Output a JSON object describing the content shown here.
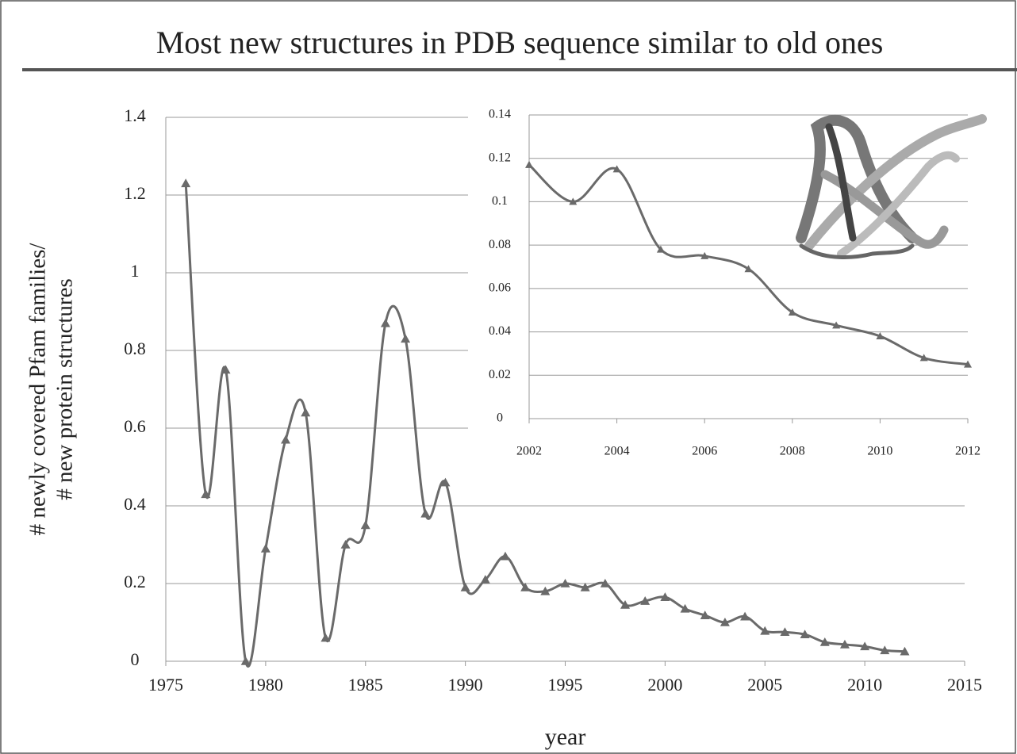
{
  "title": "Most new structures in PDB sequence similar to old ones",
  "chart_data": [
    {
      "type": "line",
      "xlabel": "year",
      "ylabel": [
        "# newly covered Pfam families/",
        "# new protein structures"
      ],
      "x": [
        1976,
        1977,
        1978,
        1979,
        1980,
        1981,
        1982,
        1983,
        1984,
        1985,
        1986,
        1987,
        1988,
        1989,
        1990,
        1991,
        1992,
        1993,
        1994,
        1995,
        1996,
        1997,
        1998,
        1999,
        2000,
        2001,
        2002,
        2003,
        2004,
        2005,
        2006,
        2007,
        2008,
        2009,
        2010,
        2011,
        2012
      ],
      "values": [
        1.23,
        0.43,
        0.75,
        0,
        0.29,
        0.57,
        0.64,
        0.06,
        0.3,
        0.35,
        0.87,
        0.83,
        0.38,
        0.46,
        0.19,
        0.21,
        0.27,
        0.19,
        0.18,
        0.2,
        0.19,
        0.2,
        0.145,
        0.155,
        0.165,
        0.135,
        0.118,
        0.1,
        0.115,
        0.078,
        0.075,
        0.069,
        0.049,
        0.043,
        0.038,
        0.028,
        0.025
      ],
      "color": "#6a6a6a",
      "xlim": [
        1975,
        2015
      ],
      "xticks": [
        1975,
        1980,
        1985,
        1990,
        1995,
        2000,
        2005,
        2010,
        2015
      ],
      "ylim": [
        0,
        1.4
      ],
      "yticks": [
        0,
        0.2,
        0.4,
        0.6,
        0.8,
        1,
        1.2,
        1.4
      ],
      "grid": true
    },
    {
      "type": "line",
      "x": [
        2002,
        2003,
        2004,
        2005,
        2006,
        2007,
        2008,
        2009,
        2010,
        2011,
        2012
      ],
      "values": [
        0.117,
        0.1,
        0.115,
        0.078,
        0.075,
        0.069,
        0.049,
        0.043,
        0.038,
        0.028,
        0.025
      ],
      "color": "#6a6a6a",
      "xlim": [
        2002,
        2012
      ],
      "xticks": [
        2002,
        2004,
        2006,
        2008,
        2010,
        2012
      ],
      "ylim": [
        0,
        0.14
      ],
      "yticks": [
        0,
        0.02,
        0.04,
        0.06,
        0.08,
        0.1,
        0.12,
        0.14
      ],
      "grid": true
    }
  ]
}
